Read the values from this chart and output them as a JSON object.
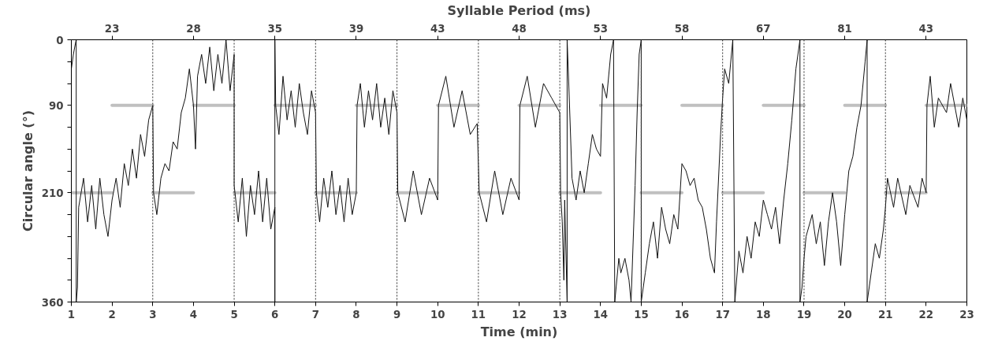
{
  "chart_data": {
    "type": "line",
    "xlabel": "Time (min)",
    "ylabel": "Circular angle (°)",
    "x2label": "Syllable Period (ms)",
    "xlim": [
      1,
      23
    ],
    "xticks": [
      1,
      2,
      3,
      4,
      5,
      6,
      7,
      8,
      9,
      10,
      11,
      12,
      13,
      14,
      15,
      16,
      17,
      18,
      19,
      20,
      21,
      22,
      23
    ],
    "annotations": [
      {
        "text": "23",
        "x": 2
      },
      {
        "text": "28",
        "x": 4
      },
      {
        "text": "35",
        "x": 6
      },
      {
        "text": "39",
        "x": 8
      },
      {
        "text": "43",
        "x": 10
      },
      {
        "text": "48",
        "x": 12
      },
      {
        "text": "53",
        "x": 14
      },
      {
        "text": "58",
        "x": 16
      },
      {
        "text": "67",
        "x": 18
      },
      {
        "text": "81",
        "x": 20
      },
      {
        "text": "43",
        "x": 22
      }
    ],
    "ylim": [
      360,
      0
    ],
    "yticks": [
      0,
      {
        "value": 30,
        "label": null
      },
      {
        "value": 60,
        "label": null
      },
      90,
      {
        "value": 120,
        "label": null
      },
      {
        "value": 150,
        "label": null
      },
      {
        "value": 180,
        "label": null
      },
      210,
      {
        "value": 240,
        "label": null
      },
      {
        "value": 270,
        "label": null
      },
      {
        "value": 300,
        "label": null
      },
      {
        "value": 330,
        "label": null
      },
      360
    ],
    "grid": false,
    "line_style": "solid",
    "marker": "none",
    "ref_lines": [
      {
        "axis": "x",
        "value": 3,
        "line_style": "dotted",
        "color": "#333333"
      },
      {
        "axis": "x",
        "value": 5,
        "line_style": "dotted",
        "color": "#333333"
      },
      {
        "axis": "x",
        "value": 7,
        "line_style": "dotted",
        "color": "#333333"
      },
      {
        "axis": "x",
        "value": 9,
        "line_style": "dotted",
        "color": "#333333"
      },
      {
        "axis": "x",
        "value": 11,
        "line_style": "dotted",
        "color": "#333333"
      },
      {
        "axis": "x",
        "value": 13,
        "line_style": "dotted",
        "color": "#333333"
      },
      {
        "axis": "x",
        "value": 15,
        "line_style": "dotted",
        "color": "#333333"
      },
      {
        "axis": "x",
        "value": 17,
        "line_style": "dotted",
        "color": "#333333"
      },
      {
        "axis": "x",
        "value": 19,
        "line_style": "dotted",
        "color": "#333333"
      },
      {
        "axis": "x",
        "value": 21,
        "line_style": "dotted",
        "color": "#333333"
      }
    ],
    "series": [
      {
        "type": "line",
        "color": "#c0c0c0",
        "x": [
          1,
          2
        ],
        "values": [
          210,
          210
        ]
      },
      {
        "type": "line",
        "color": "#c0c0c0",
        "x": [
          2,
          3
        ],
        "values": [
          90,
          90
        ]
      },
      {
        "type": "line",
        "color": "#c0c0c0",
        "x": [
          3,
          4
        ],
        "values": [
          210,
          210
        ]
      },
      {
        "type": "line",
        "color": "#c0c0c0",
        "x": [
          4,
          5
        ],
        "values": [
          90,
          90
        ]
      },
      {
        "type": "line",
        "color": "#c0c0c0",
        "x": [
          5,
          6
        ],
        "values": [
          210,
          210
        ]
      },
      {
        "type": "line",
        "color": "#c0c0c0",
        "x": [
          6,
          7
        ],
        "values": [
          90,
          90
        ]
      },
      {
        "type": "line",
        "color": "#c0c0c0",
        "x": [
          7,
          8
        ],
        "values": [
          210,
          210
        ]
      },
      {
        "type": "line",
        "color": "#c0c0c0",
        "x": [
          8,
          9
        ],
        "values": [
          90,
          90
        ]
      },
      {
        "type": "line",
        "color": "#c0c0c0",
        "x": [
          9,
          10
        ],
        "values": [
          210,
          210
        ]
      },
      {
        "type": "line",
        "color": "#c0c0c0",
        "x": [
          10,
          11
        ],
        "values": [
          90,
          90
        ]
      },
      {
        "type": "line",
        "color": "#c0c0c0",
        "x": [
          11,
          12
        ],
        "values": [
          210,
          210
        ]
      },
      {
        "type": "line",
        "color": "#c0c0c0",
        "x": [
          12,
          13
        ],
        "values": [
          90,
          90
        ]
      },
      {
        "type": "line",
        "color": "#c0c0c0",
        "x": [
          13,
          14
        ],
        "values": [
          210,
          210
        ]
      },
      {
        "type": "line",
        "color": "#c0c0c0",
        "x": [
          14,
          15
        ],
        "values": [
          90,
          90
        ]
      },
      {
        "type": "line",
        "color": "#c0c0c0",
        "x": [
          15,
          16
        ],
        "values": [
          210,
          210
        ]
      },
      {
        "type": "line",
        "color": "#c0c0c0",
        "x": [
          16,
          17
        ],
        "values": [
          90,
          90
        ]
      },
      {
        "type": "line",
        "color": "#c0c0c0",
        "x": [
          17,
          18
        ],
        "values": [
          210,
          210
        ]
      },
      {
        "type": "line",
        "color": "#c0c0c0",
        "x": [
          18,
          19
        ],
        "values": [
          90,
          90
        ]
      },
      {
        "type": "line",
        "color": "#c0c0c0",
        "x": [
          19,
          20
        ],
        "values": [
          210,
          210
        ]
      },
      {
        "type": "line",
        "color": "#c0c0c0",
        "x": [
          20,
          21
        ],
        "values": [
          90,
          90
        ]
      },
      {
        "type": "line",
        "color": "#c0c0c0",
        "x": [
          21,
          22
        ],
        "values": [
          210,
          210
        ]
      },
      {
        "type": "line",
        "color": "#c0c0c0",
        "x": [
          22,
          23
        ],
        "values": [
          90,
          90
        ]
      },
      {
        "color": "#111111",
        "x": [
          1.0,
          1.05,
          1.1,
          1.12,
          1.12,
          1.15,
          1.18,
          1.3,
          1.4,
          1.5,
          1.6,
          1.7,
          1.8,
          1.9,
          2.0,
          2.1,
          2.2,
          2.3,
          2.4,
          2.5,
          2.6,
          2.7,
          2.8,
          2.9,
          3.0,
          3.02,
          3.1,
          3.2,
          3.3,
          3.4,
          3.5,
          3.6,
          3.7,
          3.8,
          3.9,
          4.0,
          4.05,
          4.1,
          4.2,
          4.3,
          4.4,
          4.5,
          4.6,
          4.7,
          4.8,
          4.9,
          5.0,
          5.0,
          5.1,
          5.2,
          5.3,
          5.4,
          5.5,
          5.6,
          5.7,
          5.8,
          5.9,
          6.0,
          6.0,
          6.0,
          6.02,
          6.1,
          6.2,
          6.3,
          6.4,
          6.5,
          6.6,
          6.7,
          6.8,
          6.9,
          7.0,
          7.02,
          7.1,
          7.2,
          7.3,
          7.4,
          7.5,
          7.6,
          7.7,
          7.8,
          7.9,
          8.0,
          8.02,
          8.1,
          8.2,
          8.3,
          8.4,
          8.5,
          8.6,
          8.7,
          8.8,
          8.9,
          9.0,
          9.02,
          9.2,
          9.4,
          9.6,
          9.8,
          10.0,
          10.02,
          10.2,
          10.4,
          10.6,
          10.8,
          10.97,
          11.02,
          11.2,
          11.4,
          11.6,
          11.8,
          12.0,
          12.02,
          12.2,
          12.4,
          12.6,
          12.8,
          13.0,
          13.02,
          13.06,
          13.1,
          13.12,
          13.18,
          13.18,
          13.22,
          13.3,
          13.4,
          13.5,
          13.6,
          13.7,
          13.8,
          13.9,
          14.0,
          14.05,
          14.15,
          14.25,
          14.32,
          14.35,
          14.45,
          14.5,
          14.6,
          14.7,
          14.75,
          14.85,
          14.9,
          14.95,
          15.0,
          15.0,
          15.1,
          15.2,
          15.3,
          15.4,
          15.5,
          15.6,
          15.7,
          15.8,
          15.9,
          16.0,
          16.1,
          16.2,
          16.3,
          16.4,
          16.5,
          16.6,
          16.7,
          16.8,
          16.85,
          16.95,
          17.0,
          17.05,
          17.15,
          17.25,
          17.3,
          17.4,
          17.5,
          17.6,
          17.7,
          17.8,
          17.9,
          18.0,
          18.1,
          18.2,
          18.3,
          18.4,
          18.5,
          18.6,
          18.7,
          18.8,
          18.9,
          18.9,
          18.95,
          19.0,
          19.05,
          19.2,
          19.3,
          19.4,
          19.5,
          19.6,
          19.7,
          19.8,
          19.9,
          20.0,
          20.1,
          20.2,
          20.3,
          20.4,
          20.5,
          20.55,
          20.55,
          20.65,
          20.75,
          20.85,
          20.95,
          21.0,
          21.05,
          21.2,
          21.3,
          21.5,
          21.6,
          21.8,
          21.9,
          22.0,
          22.02,
          22.1,
          22.2,
          22.3,
          22.5,
          22.6,
          22.8,
          22.9,
          23.0
        ],
        "values": [
          40,
          20,
          5,
          0,
          360,
          340,
          230,
          190,
          250,
          200,
          260,
          190,
          240,
          270,
          220,
          190,
          230,
          170,
          200,
          150,
          190,
          130,
          160,
          110,
          90,
          210,
          240,
          190,
          170,
          180,
          140,
          150,
          100,
          80,
          40,
          90,
          150,
          50,
          20,
          60,
          10,
          70,
          20,
          60,
          0,
          70,
          20,
          200,
          250,
          190,
          270,
          200,
          240,
          180,
          250,
          190,
          260,
          230,
          360,
          0,
          90,
          130,
          50,
          110,
          70,
          120,
          60,
          100,
          130,
          70,
          100,
          210,
          250,
          190,
          230,
          180,
          240,
          200,
          250,
          190,
          240,
          210,
          90,
          60,
          120,
          70,
          110,
          60,
          120,
          80,
          130,
          70,
          100,
          210,
          250,
          180,
          240,
          190,
          220,
          90,
          50,
          120,
          70,
          130,
          115,
          210,
          250,
          180,
          240,
          190,
          220,
          90,
          50,
          120,
          60,
          80,
          100,
          210,
          250,
          330,
          220,
          360,
          0,
          60,
          190,
          220,
          180,
          210,
          170,
          130,
          150,
          160,
          60,
          80,
          20,
          0,
          360,
          300,
          320,
          300,
          330,
          360,
          200,
          100,
          20,
          0,
          360,
          320,
          280,
          250,
          300,
          230,
          260,
          280,
          240,
          260,
          170,
          180,
          200,
          190,
          220,
          230,
          260,
          300,
          320,
          250,
          130,
          80,
          40,
          60,
          0,
          360,
          290,
          320,
          270,
          300,
          250,
          270,
          220,
          240,
          260,
          230,
          280,
          220,
          170,
          110,
          40,
          0,
          360,
          340,
          300,
          270,
          240,
          280,
          250,
          310,
          250,
          210,
          250,
          310,
          240,
          180,
          160,
          120,
          90,
          30,
          0,
          360,
          320,
          280,
          300,
          260,
          230,
          190,
          230,
          190,
          240,
          200,
          230,
          190,
          210,
          90,
          50,
          120,
          80,
          100,
          60,
          120,
          80,
          110
        ]
      }
    ]
  }
}
